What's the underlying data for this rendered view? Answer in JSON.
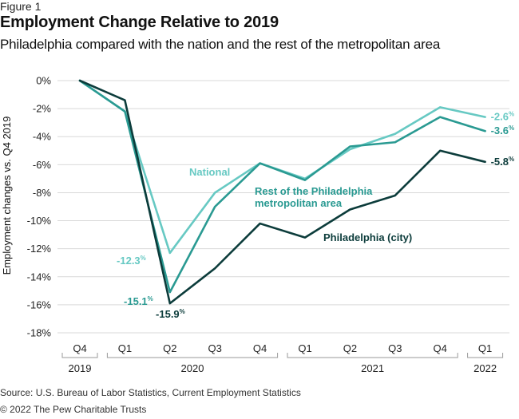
{
  "figure_label": "Figure 1",
  "title": "Employment Change Relative to 2019",
  "subtitle": "Philadelphia compared with the nation and the rest of the metropolitan area",
  "source": "Source: U.S. Bureau of Labor Statistics, Current Employment Statistics",
  "copyright": "© 2022 The Pew Charitable Trusts",
  "colors": {
    "national": "#67c9c3",
    "rest_of_metro": "#2a9a92",
    "philadelphia": "#0c3c3b",
    "grid": "#d9d9d9",
    "axis_text": "#222222"
  },
  "chart_data": {
    "type": "line",
    "ylabel": "Employment changes vs. Q4 2019",
    "ylim": [
      -18,
      0
    ],
    "yticks": [
      0,
      -2,
      -4,
      -6,
      -8,
      -10,
      -12,
      -14,
      -16,
      -18
    ],
    "ytick_labels": [
      "0%",
      "-2%",
      "-4%",
      "-6%",
      "-8%",
      "-10%",
      "-12%",
      "-14%",
      "-16%",
      "-18%"
    ],
    "grid": true,
    "x": [
      "Q4",
      "Q1",
      "Q2",
      "Q3",
      "Q4",
      "Q1",
      "Q2",
      "Q3",
      "Q4",
      "Q1"
    ],
    "year_groups": [
      {
        "label": "2019",
        "start": 0,
        "end": 0
      },
      {
        "label": "2020",
        "start": 1,
        "end": 4
      },
      {
        "label": "2021",
        "start": 5,
        "end": 8
      },
      {
        "label": "2022",
        "start": 9,
        "end": 9
      }
    ],
    "series": [
      {
        "key": "national",
        "name": "National",
        "values": [
          0,
          -2.2,
          -12.3,
          -8.0,
          -5.9,
          -7.0,
          -4.9,
          -3.8,
          -1.9,
          -2.6
        ],
        "end_label": "-2.6",
        "trough_label": "-12.3"
      },
      {
        "key": "rest_of_metro",
        "name_lines": [
          "Rest of the Philadelphia",
          "metropolitan area"
        ],
        "values": [
          0,
          -2.2,
          -15.1,
          -9.0,
          -5.9,
          -7.1,
          -4.7,
          -4.4,
          -2.6,
          -3.6
        ],
        "end_label": "-3.6",
        "trough_label": "-15.1"
      },
      {
        "key": "philadelphia",
        "name": "Philadelphia (city)",
        "values": [
          0,
          -1.4,
          -15.9,
          -13.4,
          -10.2,
          -11.2,
          -9.2,
          -8.2,
          -5.0,
          -5.8
        ],
        "end_label": "-5.8",
        "trough_label": "-15.9"
      }
    ],
    "percent_sign": "%"
  }
}
